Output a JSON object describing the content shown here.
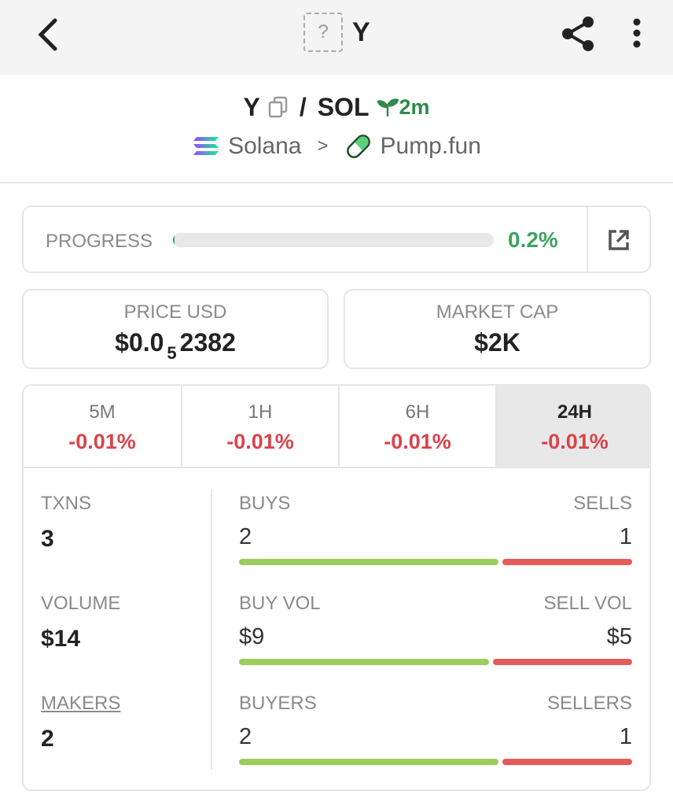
{
  "header": {
    "title": "Y",
    "icon_placeholder": "?"
  },
  "pair": {
    "base": "Y",
    "separator": "/",
    "quote": "SOL",
    "age": "2m",
    "chain": "Solana",
    "chevron": ">",
    "dex": "Pump.fun"
  },
  "progress": {
    "label": "PROGRESS",
    "value": 0.2,
    "value_label": "0.2%"
  },
  "stats": [
    {
      "label": "PRICE USD",
      "value_parts": [
        "$0.0",
        "5",
        "2382"
      ]
    },
    {
      "label": "MARKET CAP",
      "value": "$2K"
    }
  ],
  "timeframes": [
    {
      "label": "5M",
      "change": "-0.01%"
    },
    {
      "label": "1H",
      "change": "-0.01%"
    },
    {
      "label": "6H",
      "change": "-0.01%"
    },
    {
      "label": "24H",
      "change": "-0.01%"
    }
  ],
  "active_timeframe": 3,
  "metrics": [
    {
      "label": "TXNS",
      "value": "3"
    },
    {
      "label": "VOLUME",
      "value": "$14"
    },
    {
      "label": "MAKERS",
      "value": "2",
      "underline": true
    }
  ],
  "splits": [
    {
      "left_label": "BUYS",
      "right_label": "SELLS",
      "left": 2,
      "right": 1
    },
    {
      "left_label": "BUY VOL",
      "right_label": "SELL VOL",
      "left": {
        "value": 9,
        "label": "$9"
      },
      "right": {
        "value": 5,
        "label": "$5"
      }
    },
    {
      "left_label": "BUYERS",
      "right_label": "SELLERS",
      "left": 2,
      "right": 1
    }
  ]
}
